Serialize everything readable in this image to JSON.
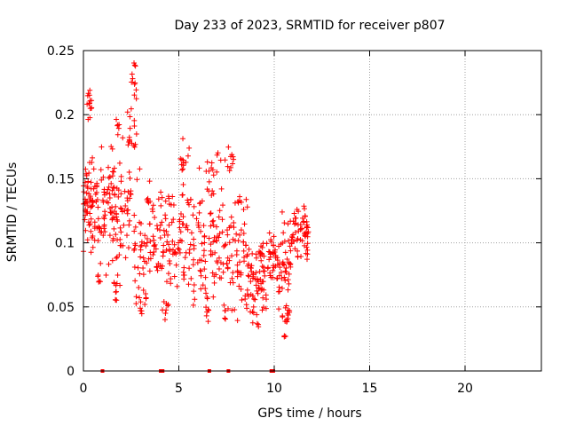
{
  "chart_data": {
    "type": "scatter",
    "title": "Day 233 of 2023, SRMTID for receiver p807",
    "xlabel": "GPS time / hours",
    "ylabel": "SRMTID / TECUs",
    "xlim": [
      0,
      24
    ],
    "ylim": [
      0,
      0.25
    ],
    "xticks": [
      0,
      5,
      10,
      15,
      20
    ],
    "xtick_labels": [
      "0",
      "5",
      "10",
      "15",
      "20"
    ],
    "yticks": [
      0,
      0.05,
      0.1,
      0.15,
      0.2,
      0.25
    ],
    "ytick_labels": [
      "0",
      "0.05",
      "0.1",
      "0.15",
      "0.2",
      "0.25"
    ],
    "grid": true,
    "marker": "+",
    "color": "#ff0000",
    "zero_points_x": [
      1.0,
      4.05,
      4.15,
      6.6,
      7.6,
      9.85,
      9.95
    ],
    "clusters": [
      {
        "x0": 0.0,
        "x1": 0.45,
        "y": 0.135,
        "spread": 0.03,
        "n": 45
      },
      {
        "x0": 0.15,
        "x1": 0.45,
        "y": 0.205,
        "spread": 0.015,
        "n": 14
      },
      {
        "x0": 0.45,
        "x1": 1.5,
        "y": 0.125,
        "spread": 0.035,
        "n": 70
      },
      {
        "x0": 0.7,
        "x1": 0.9,
        "y": 0.075,
        "spread": 0.01,
        "n": 6
      },
      {
        "x0": 1.5,
        "x1": 2.5,
        "y": 0.12,
        "spread": 0.04,
        "n": 70
      },
      {
        "x0": 1.5,
        "x1": 1.8,
        "y": 0.06,
        "spread": 0.01,
        "n": 8
      },
      {
        "x0": 1.7,
        "x1": 1.9,
        "y": 0.19,
        "spread": 0.01,
        "n": 6
      },
      {
        "x0": 2.3,
        "x1": 2.8,
        "y": 0.185,
        "spread": 0.015,
        "n": 16
      },
      {
        "x0": 2.5,
        "x1": 2.8,
        "y": 0.225,
        "spread": 0.01,
        "n": 8
      },
      {
        "x0": 2.6,
        "x1": 2.75,
        "y": 0.24,
        "spread": 0.003,
        "n": 3
      },
      {
        "x0": 2.6,
        "x1": 4.0,
        "y": 0.1,
        "spread": 0.04,
        "n": 70
      },
      {
        "x0": 2.9,
        "x1": 3.3,
        "y": 0.055,
        "spread": 0.01,
        "n": 8
      },
      {
        "x0": 4.0,
        "x1": 5.6,
        "y": 0.1,
        "spread": 0.035,
        "n": 85
      },
      {
        "x0": 4.2,
        "x1": 4.5,
        "y": 0.05,
        "spread": 0.008,
        "n": 6
      },
      {
        "x0": 5.0,
        "x1": 5.6,
        "y": 0.16,
        "spread": 0.015,
        "n": 14
      },
      {
        "x0": 5.6,
        "x1": 7.2,
        "y": 0.1,
        "spread": 0.04,
        "n": 85
      },
      {
        "x0": 6.3,
        "x1": 6.6,
        "y": 0.045,
        "spread": 0.008,
        "n": 7
      },
      {
        "x0": 6.4,
        "x1": 7.2,
        "y": 0.16,
        "spread": 0.012,
        "n": 12
      },
      {
        "x0": 7.2,
        "x1": 8.6,
        "y": 0.095,
        "spread": 0.04,
        "n": 75
      },
      {
        "x0": 7.4,
        "x1": 7.9,
        "y": 0.165,
        "spread": 0.01,
        "n": 10
      },
      {
        "x0": 7.4,
        "x1": 7.8,
        "y": 0.045,
        "spread": 0.008,
        "n": 6
      },
      {
        "x0": 8.5,
        "x1": 9.6,
        "y": 0.07,
        "spread": 0.025,
        "n": 70
      },
      {
        "x0": 8.8,
        "x1": 9.2,
        "y": 0.035,
        "spread": 0.006,
        "n": 5
      },
      {
        "x0": 9.6,
        "x1": 10.9,
        "y": 0.085,
        "spread": 0.028,
        "n": 75
      },
      {
        "x0": 10.2,
        "x1": 10.8,
        "y": 0.045,
        "spread": 0.008,
        "n": 14
      },
      {
        "x0": 10.5,
        "x1": 10.7,
        "y": 0.027,
        "spread": 0.002,
        "n": 3
      },
      {
        "x0": 10.9,
        "x1": 11.8,
        "y": 0.11,
        "spread": 0.02,
        "n": 60
      }
    ]
  }
}
